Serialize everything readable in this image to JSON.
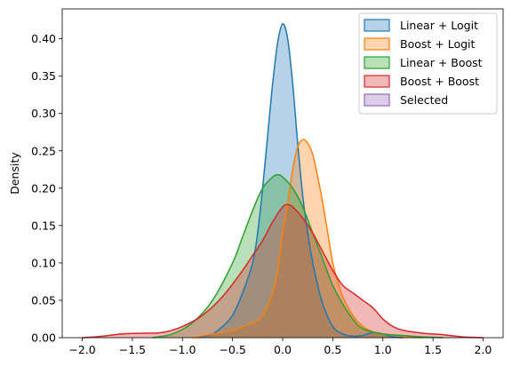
{
  "chart_data": {
    "type": "area",
    "title": "",
    "xlabel": "",
    "ylabel": "Density",
    "xlim": [
      -2.2,
      2.2
    ],
    "ylim": [
      0,
      0.44
    ],
    "xticks": [
      -2.0,
      -1.5,
      -1.0,
      -0.5,
      0.0,
      0.5,
      1.0,
      1.5,
      2.0
    ],
    "xtick_labels": [
      "−2.0",
      "−1.5",
      "−1.0",
      "−0.5",
      "0.0",
      "0.5",
      "1.0",
      "1.5",
      "2.0"
    ],
    "yticks": [
      0.0,
      0.05,
      0.1,
      0.15,
      0.2,
      0.25,
      0.3,
      0.35,
      0.4
    ],
    "ytick_labels": [
      "0.00",
      "0.05",
      "0.10",
      "0.15",
      "0.20",
      "0.25",
      "0.30",
      "0.35",
      "0.40"
    ],
    "grid": false,
    "legend_position": "top-right",
    "series": [
      {
        "name": "Linear + Logit",
        "color": "#1f77b4",
        "points": [
          [
            -0.85,
            0
          ],
          [
            -0.7,
            0.005
          ],
          [
            -0.6,
            0.015
          ],
          [
            -0.5,
            0.03
          ],
          [
            -0.4,
            0.06
          ],
          [
            -0.3,
            0.1
          ],
          [
            -0.25,
            0.14
          ],
          [
            -0.2,
            0.2
          ],
          [
            -0.15,
            0.27
          ],
          [
            -0.1,
            0.34
          ],
          [
            -0.05,
            0.395
          ],
          [
            0.0,
            0.42
          ],
          [
            0.05,
            0.4
          ],
          [
            0.1,
            0.34
          ],
          [
            0.15,
            0.26
          ],
          [
            0.2,
            0.19
          ],
          [
            0.25,
            0.14
          ],
          [
            0.3,
            0.1
          ],
          [
            0.35,
            0.07
          ],
          [
            0.4,
            0.045
          ],
          [
            0.5,
            0.015
          ],
          [
            0.6,
            0.005
          ],
          [
            0.7,
            0.002
          ],
          [
            0.8,
            0.003
          ],
          [
            0.9,
            0.007
          ],
          [
            1.0,
            0.005
          ],
          [
            1.1,
            0.001
          ],
          [
            1.2,
            0
          ]
        ]
      },
      {
        "name": "Boost + Logit",
        "color": "#ff7f0e",
        "points": [
          [
            -0.9,
            0
          ],
          [
            -0.7,
            0.005
          ],
          [
            -0.5,
            0.01
          ],
          [
            -0.3,
            0.02
          ],
          [
            -0.2,
            0.03
          ],
          [
            -0.1,
            0.06
          ],
          [
            -0.05,
            0.09
          ],
          [
            0.0,
            0.14
          ],
          [
            0.05,
            0.18
          ],
          [
            0.1,
            0.225
          ],
          [
            0.15,
            0.255
          ],
          [
            0.2,
            0.265
          ],
          [
            0.25,
            0.26
          ],
          [
            0.3,
            0.245
          ],
          [
            0.35,
            0.215
          ],
          [
            0.4,
            0.18
          ],
          [
            0.45,
            0.14
          ],
          [
            0.5,
            0.1
          ],
          [
            0.55,
            0.075
          ],
          [
            0.6,
            0.055
          ],
          [
            0.7,
            0.03
          ],
          [
            0.8,
            0.015
          ],
          [
            0.9,
            0.008
          ],
          [
            1.0,
            0.005
          ],
          [
            1.2,
            0.002
          ],
          [
            1.4,
            0
          ]
        ]
      },
      {
        "name": "Linear + Boost",
        "color": "#2ca02c",
        "points": [
          [
            -1.3,
            0
          ],
          [
            -1.1,
            0.005
          ],
          [
            -0.9,
            0.02
          ],
          [
            -0.7,
            0.05
          ],
          [
            -0.5,
            0.1
          ],
          [
            -0.4,
            0.135
          ],
          [
            -0.3,
            0.17
          ],
          [
            -0.2,
            0.2
          ],
          [
            -0.1,
            0.215
          ],
          [
            -0.05,
            0.218
          ],
          [
            0.0,
            0.215
          ],
          [
            0.1,
            0.2
          ],
          [
            0.2,
            0.175
          ],
          [
            0.3,
            0.14
          ],
          [
            0.4,
            0.105
          ],
          [
            0.5,
            0.07
          ],
          [
            0.6,
            0.045
          ],
          [
            0.7,
            0.025
          ],
          [
            0.8,
            0.012
          ],
          [
            1.0,
            0.005
          ],
          [
            1.2,
            0.003
          ],
          [
            1.4,
            0.001
          ],
          [
            1.6,
            0
          ]
        ]
      },
      {
        "name": "Boost + Boost",
        "color": "#d62728",
        "points": [
          [
            -2.0,
            0
          ],
          [
            -1.8,
            0.002
          ],
          [
            -1.6,
            0.005
          ],
          [
            -1.4,
            0.006
          ],
          [
            -1.2,
            0.007
          ],
          [
            -1.0,
            0.015
          ],
          [
            -0.8,
            0.03
          ],
          [
            -0.6,
            0.055
          ],
          [
            -0.4,
            0.09
          ],
          [
            -0.3,
            0.11
          ],
          [
            -0.2,
            0.13
          ],
          [
            -0.1,
            0.155
          ],
          [
            0.0,
            0.175
          ],
          [
            0.05,
            0.178
          ],
          [
            0.1,
            0.175
          ],
          [
            0.2,
            0.16
          ],
          [
            0.3,
            0.14
          ],
          [
            0.4,
            0.115
          ],
          [
            0.5,
            0.09
          ],
          [
            0.6,
            0.07
          ],
          [
            0.7,
            0.06
          ],
          [
            0.8,
            0.05
          ],
          [
            0.9,
            0.04
          ],
          [
            1.0,
            0.025
          ],
          [
            1.1,
            0.015
          ],
          [
            1.2,
            0.01
          ],
          [
            1.4,
            0.006
          ],
          [
            1.6,
            0.004
          ],
          [
            1.8,
            0.001
          ],
          [
            2.0,
            0
          ]
        ]
      },
      {
        "name": "Selected",
        "color": "#9467bd",
        "points": []
      }
    ]
  }
}
